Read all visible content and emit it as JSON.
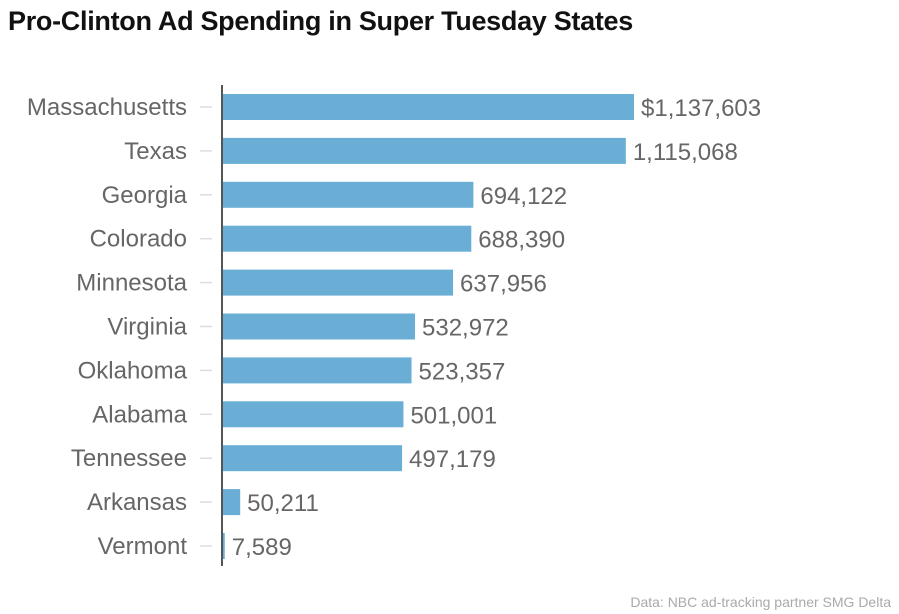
{
  "title": "Pro-Clinton Ad Spending in Super Tuesday States",
  "source": "Data: NBC ad-tracking partner SMG Delta",
  "chart_data": {
    "type": "bar",
    "orientation": "horizontal",
    "title": "Pro-Clinton Ad Spending in Super Tuesday States",
    "categories": [
      "Massachusetts",
      "Texas",
      "Georgia",
      "Colorado",
      "Minnesota",
      "Virginia",
      "Oklahoma",
      "Alabama",
      "Tennessee",
      "Arkansas",
      "Vermont"
    ],
    "values": [
      1137603,
      1115068,
      694122,
      688390,
      637956,
      532972,
      523357,
      501001,
      497179,
      50211,
      7589
    ],
    "labels": [
      "$1,137,603",
      "1,115,068",
      "694,122",
      "688,390",
      "637,956",
      "532,972",
      "523,357",
      "501,001",
      "497,179",
      "50,211",
      "7,589"
    ],
    "xlim": [
      0,
      1137603
    ],
    "grid": false,
    "bar_color": "#6aaed6"
  }
}
